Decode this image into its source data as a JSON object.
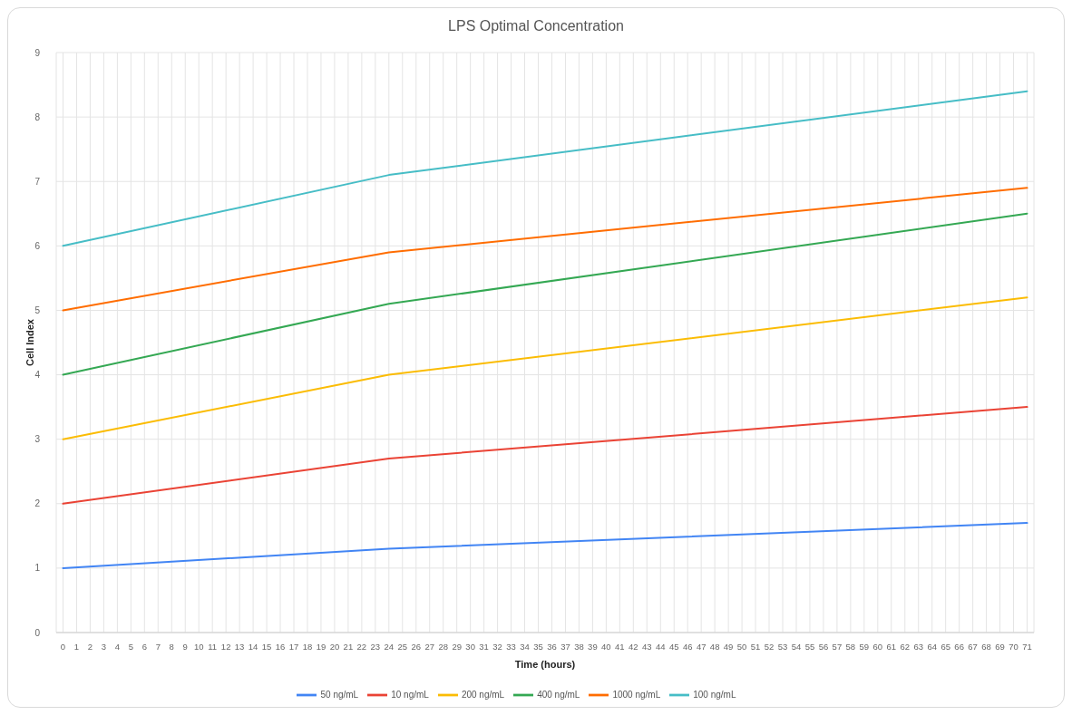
{
  "chart_data": {
    "type": "line",
    "title": "LPS Optimal Concentration",
    "xlabel": "Time (hours)",
    "ylabel": "Cell Index",
    "x": [
      0,
      24,
      71
    ],
    "series": [
      {
        "name": "50 ng/mL",
        "color": "#4285f4",
        "values": [
          1.0,
          1.3,
          1.7
        ]
      },
      {
        "name": "10 ng/mL",
        "color": "#ea4335",
        "values": [
          2.0,
          2.7,
          3.5
        ]
      },
      {
        "name": "200 ng/mL",
        "color": "#fbbc04",
        "values": [
          3.0,
          4.0,
          5.2
        ]
      },
      {
        "name": "400 ng/mL",
        "color": "#34a853",
        "values": [
          4.0,
          5.1,
          6.5
        ]
      },
      {
        "name": "1000 ng/mL",
        "color": "#ff6d01",
        "values": [
          5.0,
          5.9,
          6.9
        ]
      },
      {
        "name": "100 ng/mL",
        "color": "#46bdc6",
        "values": [
          6.0,
          7.1,
          8.4
        ]
      }
    ],
    "xlim": [
      -0.5,
      71.5
    ],
    "xticks": [
      0,
      1,
      2,
      3,
      4,
      5,
      6,
      7,
      8,
      9,
      10,
      11,
      12,
      13,
      14,
      15,
      16,
      17,
      18,
      19,
      20,
      21,
      22,
      23,
      24,
      25,
      26,
      27,
      28,
      29,
      30,
      31,
      32,
      33,
      34,
      35,
      36,
      37,
      38,
      39,
      40,
      41,
      42,
      43,
      44,
      45,
      46,
      47,
      48,
      49,
      50,
      51,
      52,
      53,
      54,
      55,
      56,
      57,
      58,
      59,
      60,
      61,
      62,
      63,
      64,
      65,
      66,
      67,
      68,
      69,
      70,
      71
    ],
    "ylim": [
      0,
      9
    ],
    "yticks": [
      0,
      1,
      2,
      3,
      4,
      5,
      6,
      7,
      8,
      9
    ],
    "grid": true,
    "legend": "bottom",
    "marker": "none",
    "line_style": "solid"
  }
}
